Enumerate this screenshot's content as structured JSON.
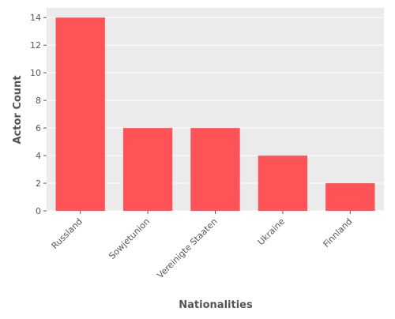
{
  "chart_data": {
    "type": "bar",
    "title": "",
    "xlabel": "Nationalities",
    "ylabel": "Actor Count",
    "categories": [
      "Russland",
      "Sowjetunion",
      "Vereinigte Staaten",
      "Ukraine",
      "Finnland"
    ],
    "values": [
      14,
      6,
      6,
      4,
      2
    ],
    "ylim": [
      0,
      14.7
    ],
    "yticks": [
      0,
      2,
      4,
      6,
      8,
      10,
      12,
      14
    ],
    "grid": true,
    "bar_color": "#ff5357",
    "background_color": "#ebebeb",
    "grid_color": "#ffffff"
  }
}
